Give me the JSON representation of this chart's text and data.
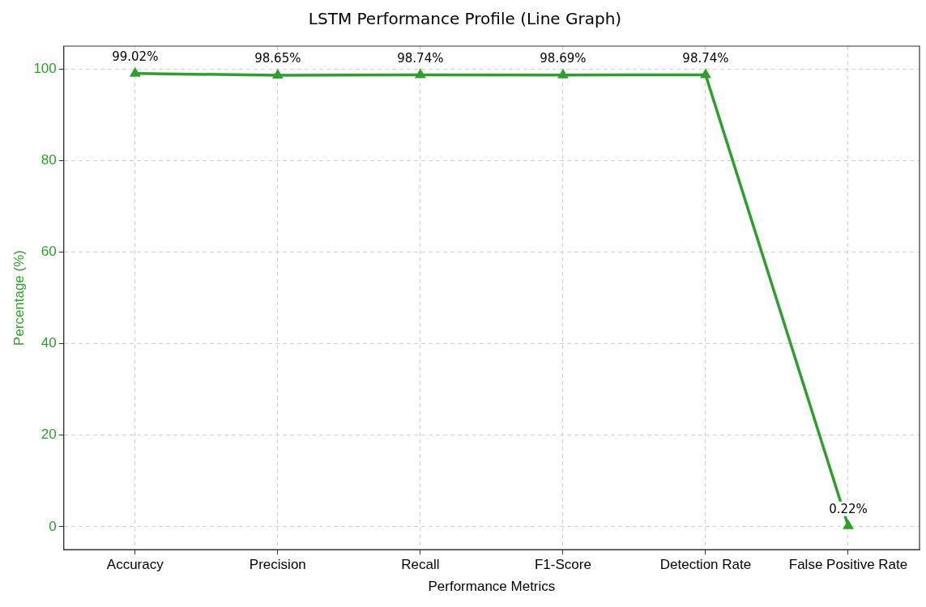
{
  "chart_data": {
    "type": "line",
    "title": "LSTM Performance Profile (Line Graph)",
    "xlabel": "Performance Metrics",
    "ylabel": "Percentage (%)",
    "categories": [
      "Accuracy",
      "Precision",
      "Recall",
      "F1-Score",
      "Detection Rate",
      "False Positive Rate"
    ],
    "series": [
      {
        "color": "#2ca02c",
        "values": [
          99.02,
          98.65,
          98.74,
          98.69,
          98.74,
          0.22
        ],
        "value_labels": [
          "99.02%",
          "98.65%",
          "98.74%",
          "98.69%",
          "98.74%",
          "0.22%"
        ]
      }
    ],
    "ylim": [
      -5,
      105
    ],
    "yticks": [
      0,
      20,
      40,
      60,
      80,
      100
    ],
    "grid": true,
    "legend": false,
    "marker": "triangle",
    "line_style": "solid"
  }
}
